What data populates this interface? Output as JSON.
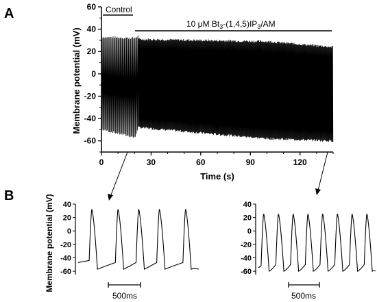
{
  "panels": {
    "A": "A",
    "B": "B"
  },
  "chart_data": [
    {
      "type": "line",
      "panel": "A",
      "xlabel": "Time (s)",
      "ylabel": "Membrane potential (mV)",
      "xlim": [
        0,
        140
      ],
      "ylim": [
        -70,
        60
      ],
      "xticks": [
        0,
        30,
        60,
        90,
        120
      ],
      "yticks": [
        -60,
        -40,
        -20,
        0,
        20,
        40,
        60
      ],
      "annotations": {
        "control": {
          "label": "Control",
          "x_range": [
            0,
            19
          ]
        },
        "treatment": {
          "prefix": "10 μM Bt",
          "sub": "3",
          "mid": "-(1,4,5)IP",
          "sub2": "3",
          "suffix": "/AM",
          "x_range": [
            20,
            140
          ]
        }
      },
      "series": [
        {
          "values_description_free": true,
          "segments": [
            {
              "x": [
                0,
                20
              ],
              "peak": [
                33,
                32
              ],
              "trough": [
                -50,
                -57
              ],
              "rate_hz": 1.6
            },
            {
              "x": [
                20,
                22
              ],
              "peak": [
                32,
                34
              ],
              "trough": [
                -57,
                -46
              ],
              "rate_hz": 1.6
            },
            {
              "x": [
                22,
                100
              ],
              "peak": [
                31,
                29
              ],
              "trough": [
                -48,
                -58
              ],
              "rate_hz": 2.4
            },
            {
              "x": [
                100,
                140
              ],
              "peak": [
                29,
                24
              ],
              "trough": [
                -58,
                -60
              ],
              "rate_hz": 2.4
            }
          ]
        }
      ]
    },
    {
      "type": "line",
      "panel": "B-left",
      "ylabel": "Membrane potential (mV)",
      "ylim": [
        -65,
        40
      ],
      "yticks": [
        -60,
        -40,
        -20,
        0,
        20,
        40
      ],
      "scalebar": {
        "label": "500ms",
        "duration_ms": 500
      },
      "series": [
        {
          "spike_times_ms": [
            200,
            580,
            880,
            1180,
            1560
          ],
          "peak": 32,
          "trough": -57,
          "start": -47,
          "duration_ms": 1750
        }
      ]
    },
    {
      "type": "line",
      "panel": "B-right",
      "ylim": [
        -65,
        40
      ],
      "yticks": [
        -60,
        -40,
        -20,
        0,
        20,
        40
      ],
      "scalebar": {
        "label": "500ms",
        "duration_ms": 500
      },
      "series": [
        {
          "spike_times_ms": [
            80,
            300,
            520,
            740,
            960,
            1180,
            1400,
            1620
          ],
          "peak": 25,
          "trough": -60,
          "start": -55,
          "duration_ms": 1750
        }
      ]
    }
  ]
}
